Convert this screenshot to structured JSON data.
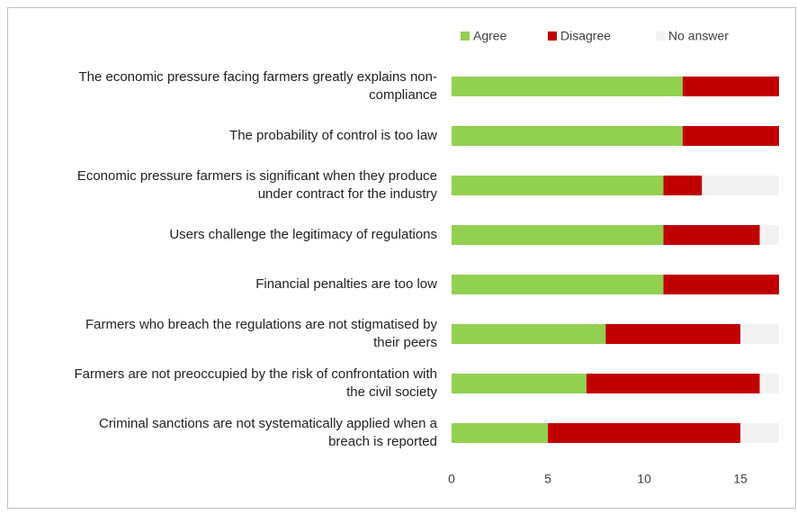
{
  "chart_data": {
    "type": "stacked_bar_horizontal",
    "categories": [
      "The economic pressure facing farmers greatly explains non-compliance",
      "The probability of control is too law",
      "Economic pressure farmers is significant when they produce under contract for the industry",
      "Users challenge the legitimacy of regulations",
      "Financial penalties are too low",
      "Farmers who breach the regulations are not stigmatised by their peers",
      "Farmers are not preoccupied by the risk of confrontation with the civil society",
      "Criminal sanctions are not systematically applied when a breach is reported"
    ],
    "series": [
      {
        "name": "Agree",
        "color": "#92d050",
        "values": [
          12,
          12,
          11,
          11,
          11,
          8,
          7,
          5
        ]
      },
      {
        "name": "Disagree",
        "color": "#c00000",
        "values": [
          5,
          5,
          2,
          5,
          6,
          7,
          9,
          10
        ]
      },
      {
        "name": "No answer",
        "color": "#f2f2f2",
        "values": [
          0,
          0,
          4,
          1,
          0,
          2,
          1,
          2
        ]
      }
    ],
    "xlim": [
      0,
      17
    ],
    "xticks": [
      0,
      5,
      10,
      15
    ],
    "legend": "top"
  }
}
